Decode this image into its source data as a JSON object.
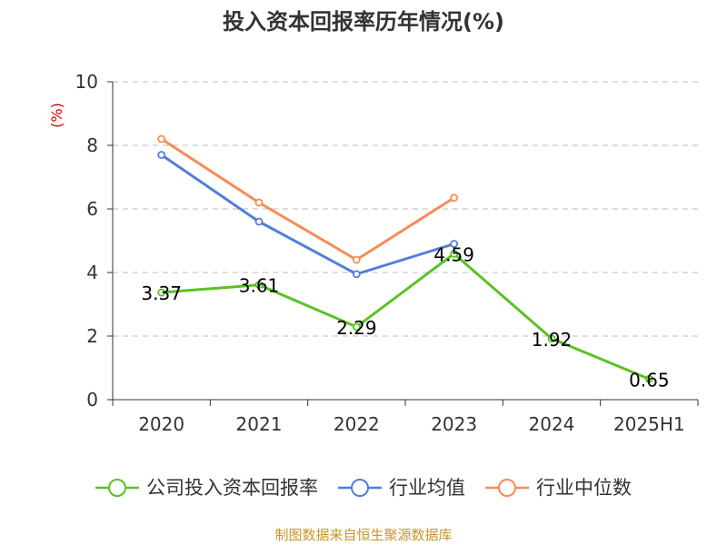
{
  "chart_data": {
    "type": "line",
    "title": "投入资本回报率历年情况(%)",
    "ylabel": "(%)",
    "xlabel": "",
    "categories": [
      "2020",
      "2021",
      "2022",
      "2023",
      "2024",
      "2025H1"
    ],
    "ylim": [
      0,
      10
    ],
    "yticks": [
      0,
      2,
      4,
      6,
      8,
      10
    ],
    "grid": true,
    "legend_position": "bottom",
    "series": [
      {
        "name": "公司投入资本回报率",
        "color": "#5bc224",
        "values": [
          3.37,
          3.61,
          2.29,
          4.59,
          1.92,
          0.65
        ],
        "labels": [
          "3.37",
          "3.61",
          "2.29",
          "4.59",
          "1.92",
          "0.65"
        ]
      },
      {
        "name": "行业均值",
        "color": "#4f7fdc",
        "values": [
          7.7,
          5.6,
          3.95,
          4.9,
          null,
          null
        ]
      },
      {
        "name": "行业中位数",
        "color": "#f58c55",
        "values": [
          8.2,
          6.2,
          4.4,
          6.35,
          null,
          null
        ]
      }
    ],
    "source": "制图数据来自恒生聚源数据库"
  }
}
